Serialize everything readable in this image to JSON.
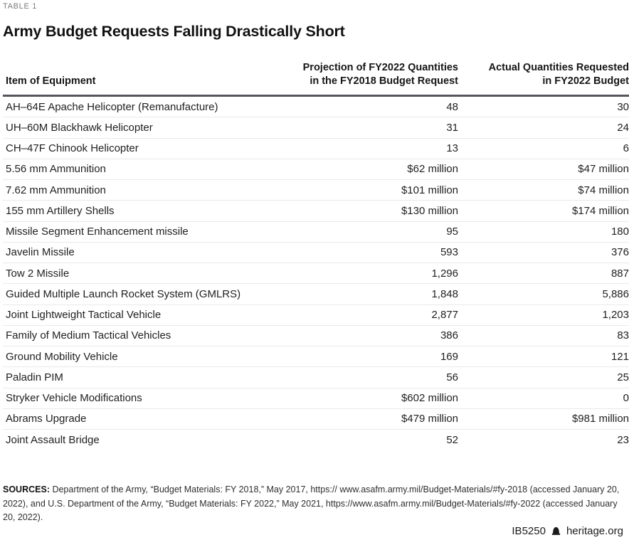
{
  "page": {
    "kicker": "TABLE 1",
    "title": "Army Budget Requests Falling Drastically Short"
  },
  "table": {
    "header": {
      "col1": "Item of Equipment",
      "col2_line1": "Projection of FY2022 Quantities",
      "col2_line2": "in the FY2018 Budget Request",
      "col3_line1": "Actual Quantities Requested",
      "col3_line2": "in FY2022 Budget"
    }
  },
  "chart_data": {
    "type": "table",
    "title": "Army Budget Requests Falling Drastically Short",
    "columns": [
      "Item of Equipment",
      "Projection of FY2022 Quantities in the FY2018 Budget Request",
      "Actual Quantities Requested in FY2022 Budget"
    ],
    "rows": [
      [
        "AH–64E Apache Helicopter (Remanufacture)",
        "48",
        "30"
      ],
      [
        "UH–60M Blackhawk Helicopter",
        "31",
        "24"
      ],
      [
        "CH–47F Chinook Helicopter",
        "13",
        "6"
      ],
      [
        "5.56 mm Ammunition",
        "$62 million",
        "$47 million"
      ],
      [
        "7.62 mm Ammunition",
        "$101 million",
        "$74 million"
      ],
      [
        "155 mm Artillery Shells",
        "$130 million",
        "$174 million"
      ],
      [
        "Missile Segment Enhancement missile",
        "95",
        "180"
      ],
      [
        "Javelin Missile",
        "593",
        "376"
      ],
      [
        "Tow 2 Missile",
        "1,296",
        "887"
      ],
      [
        "Guided Multiple Launch Rocket System (GMLRS)",
        "1,848",
        "5,886"
      ],
      [
        "Joint Lightweight Tactical Vehicle",
        "2,877",
        "1,203"
      ],
      [
        "Family of Medium Tactical Vehicles",
        "386",
        "83"
      ],
      [
        "Ground Mobility Vehicle",
        "169",
        "121"
      ],
      [
        "Paladin PIM",
        "56",
        "25"
      ],
      [
        "Stryker Vehicle Modifications",
        "$602 million",
        "0"
      ],
      [
        "Abrams Upgrade",
        "$479 million",
        "$981 million"
      ],
      [
        "Joint Assault Bridge",
        "52",
        "23"
      ]
    ]
  },
  "sources": {
    "label": "SOURCES:",
    "text": " Department of the Army, “Budget Materials: FY 2018,” May 2017, https:// www.asafm.army.mil/Budget-Materials/#fy-2018 (accessed January 20, 2022), and U.S. Department of the Army, “Budget Materials: FY 2022,” May 2021, https://www.asafm.army.mil/Budget-Materials/#fy-2022 (accessed January 20, 2022)."
  },
  "footer": {
    "doc_id": "IB5250",
    "icon": "liberty-bell-icon",
    "site": "heritage.org"
  },
  "colors": {
    "kicker": "#7b7b7b",
    "title": "#111111",
    "header_rule": "#55555b",
    "row_divider": "#e9e9e9",
    "body_text": "#1f1f1f"
  }
}
